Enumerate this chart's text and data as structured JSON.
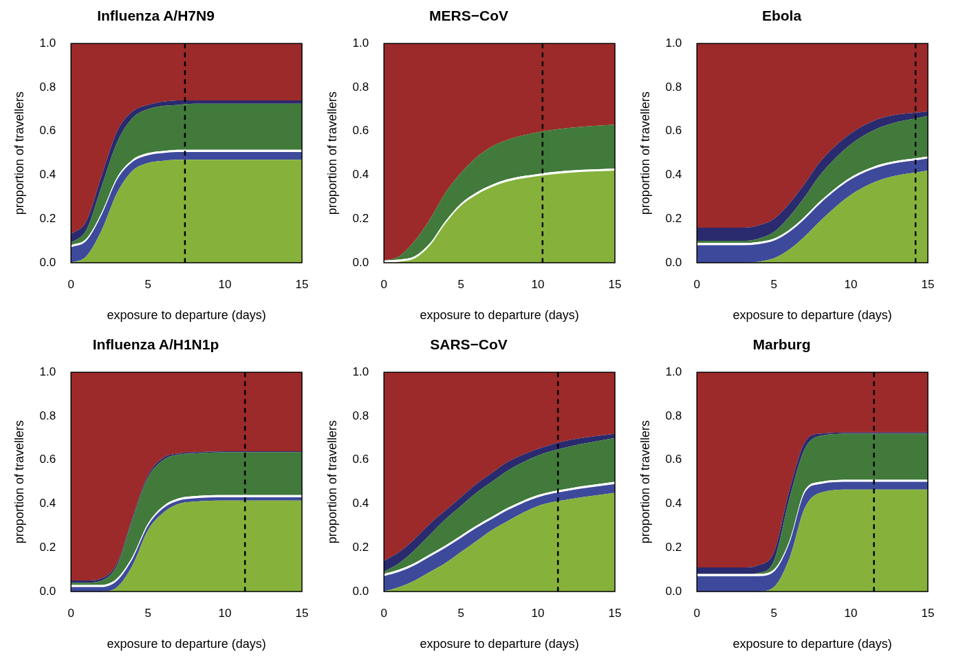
{
  "chart_data": [
    {
      "type": "area",
      "title": "Influenza A/H7N9",
      "xlabel": "exposure to departure (days)",
      "ylabel": "proportion of travellers",
      "stacked": true,
      "grid": false,
      "legend": false,
      "x": [
        0,
        1,
        2,
        3,
        4,
        5,
        6,
        7,
        8,
        10,
        12,
        15
      ],
      "xlim": [
        0,
        15
      ],
      "xticks": [
        0,
        5,
        10,
        15
      ],
      "ylim": [
        0,
        1
      ],
      "yticks": [
        {
          "value": 0,
          "label": "0.0"
        },
        {
          "value": 0.2,
          "label": "0.2"
        },
        {
          "value": 0.4,
          "label": "0.4"
        },
        {
          "value": 0.6,
          "label": "0.6"
        },
        {
          "value": 0.8,
          "label": "0.8"
        },
        {
          "value": 1,
          "label": "1.0"
        }
      ],
      "ref_lines": [
        {
          "axis": "x",
          "value": 7.4,
          "color": "#000000",
          "line_style": "dashed"
        }
      ],
      "series": [
        {
          "color": "#86b23b",
          "values": [
            0,
            0.03,
            0.15,
            0.32,
            0.42,
            0.455,
            0.465,
            0.47,
            0.47,
            0.47,
            0.47,
            0.47
          ]
        },
        {
          "color": "#3d4a9c",
          "values": [
            0.07,
            0.07,
            0.07,
            0.06,
            0.04,
            0.035,
            0.035,
            0.035,
            0.035,
            0.035,
            0.035,
            0.035
          ]
        },
        {
          "color": "#ffffff",
          "values": [
            0.01,
            0.01,
            0.01,
            0.01,
            0.01,
            0.01,
            0.01,
            0.01,
            0.01,
            0.01,
            0.01,
            0.01
          ]
        },
        {
          "color": "#417a3b",
          "values": [
            0.01,
            0.04,
            0.12,
            0.16,
            0.19,
            0.2,
            0.205,
            0.205,
            0.21,
            0.21,
            0.21,
            0.21
          ]
        },
        {
          "color": "#2a2a6e",
          "values": [
            0.04,
            0.04,
            0.05,
            0.05,
            0.03,
            0.02,
            0.02,
            0.02,
            0.015,
            0.015,
            0.015,
            0.015
          ]
        },
        {
          "color": "#9c2a2a",
          "values": [
            0.87,
            0.81,
            0.6,
            0.4,
            0.31,
            0.28,
            0.265,
            0.26,
            0.26,
            0.26,
            0.26,
            0.26
          ]
        }
      ]
    },
    {
      "type": "area",
      "title": "MERS−CoV",
      "xlabel": "exposure to departure (days)",
      "ylabel": "proportion of travellers",
      "stacked": true,
      "grid": false,
      "legend": false,
      "x": [
        0,
        1,
        2,
        3,
        4,
        5,
        6,
        7,
        8,
        10,
        12,
        15
      ],
      "xlim": [
        0,
        15
      ],
      "xticks": [
        0,
        5,
        10,
        15
      ],
      "ylim": [
        0,
        1
      ],
      "yticks": [
        {
          "value": 0,
          "label": "0.0"
        },
        {
          "value": 0.2,
          "label": "0.2"
        },
        {
          "value": 0.4,
          "label": "0.4"
        },
        {
          "value": 0.6,
          "label": "0.6"
        },
        {
          "value": 0.8,
          "label": "0.8"
        },
        {
          "value": 1,
          "label": "1.0"
        }
      ],
      "ref_lines": [
        {
          "axis": "x",
          "value": 10.3,
          "color": "#000000",
          "line_style": "dashed"
        }
      ],
      "series": [
        {
          "color": "#86b23b",
          "values": [
            0,
            0.005,
            0.02,
            0.08,
            0.18,
            0.26,
            0.31,
            0.345,
            0.37,
            0.395,
            0.41,
            0.42
          ]
        },
        {
          "color": "#ffffff",
          "values": [
            0.01,
            0.01,
            0.01,
            0.01,
            0.01,
            0.01,
            0.01,
            0.01,
            0.01,
            0.01,
            0.01,
            0.01
          ]
        },
        {
          "color": "#417a3b",
          "values": [
            0,
            0.015,
            0.07,
            0.11,
            0.13,
            0.14,
            0.16,
            0.175,
            0.18,
            0.19,
            0.195,
            0.2
          ]
        },
        {
          "color": "#9c2a2a",
          "values": [
            0.99,
            0.97,
            0.9,
            0.8,
            0.68,
            0.59,
            0.52,
            0.47,
            0.44,
            0.405,
            0.385,
            0.37
          ]
        }
      ]
    },
    {
      "type": "area",
      "title": "Ebola",
      "xlabel": "exposure to departure (days)",
      "ylabel": "proportion of travellers",
      "stacked": true,
      "grid": false,
      "legend": false,
      "x": [
        0,
        1,
        2,
        3,
        4,
        5,
        6,
        7,
        8,
        10,
        12,
        15
      ],
      "xlim": [
        0,
        15
      ],
      "xticks": [
        0,
        5,
        10,
        15
      ],
      "ylim": [
        0,
        1
      ],
      "yticks": [
        {
          "value": 0,
          "label": "0.0"
        },
        {
          "value": 0.2,
          "label": "0.2"
        },
        {
          "value": 0.4,
          "label": "0.4"
        },
        {
          "value": 0.6,
          "label": "0.6"
        },
        {
          "value": 0.8,
          "label": "0.8"
        },
        {
          "value": 1,
          "label": "1.0"
        }
      ],
      "ref_lines": [
        {
          "axis": "x",
          "value": 14.2,
          "color": "#000000",
          "line_style": "dashed"
        }
      ],
      "series": [
        {
          "color": "#86b23b",
          "values": [
            0,
            0,
            0,
            0,
            0.005,
            0.02,
            0.06,
            0.12,
            0.19,
            0.31,
            0.38,
            0.42
          ]
        },
        {
          "color": "#3d4a9c",
          "values": [
            0.08,
            0.08,
            0.08,
            0.08,
            0.08,
            0.08,
            0.08,
            0.08,
            0.08,
            0.07,
            0.06,
            0.055
          ]
        },
        {
          "color": "#ffffff",
          "values": [
            0.01,
            0.01,
            0.01,
            0.01,
            0.01,
            0.01,
            0.01,
            0.01,
            0.01,
            0.01,
            0.01,
            0.01
          ]
        },
        {
          "color": "#417a3b",
          "values": [
            0.01,
            0.01,
            0.01,
            0.01,
            0.015,
            0.03,
            0.06,
            0.09,
            0.12,
            0.15,
            0.17,
            0.185
          ]
        },
        {
          "color": "#2a2a6e",
          "values": [
            0.06,
            0.06,
            0.06,
            0.06,
            0.06,
            0.06,
            0.06,
            0.06,
            0.06,
            0.05,
            0.04,
            0.02
          ]
        },
        {
          "color": "#9c2a2a",
          "values": [
            0.84,
            0.84,
            0.84,
            0.84,
            0.83,
            0.8,
            0.73,
            0.64,
            0.54,
            0.41,
            0.34,
            0.31
          ]
        }
      ]
    },
    {
      "type": "area",
      "title": "Influenza A/H1N1p",
      "xlabel": "exposure to departure (days)",
      "ylabel": "proportion of travellers",
      "stacked": true,
      "grid": false,
      "legend": false,
      "x": [
        0,
        1,
        2,
        3,
        4,
        5,
        6,
        7,
        8,
        10,
        12,
        15
      ],
      "xlim": [
        0,
        15
      ],
      "xticks": [
        0,
        5,
        10,
        15
      ],
      "ylim": [
        0,
        1
      ],
      "yticks": [
        {
          "value": 0,
          "label": "0.0"
        },
        {
          "value": 0.2,
          "label": "0.2"
        },
        {
          "value": 0.4,
          "label": "0.4"
        },
        {
          "value": 0.6,
          "label": "0.6"
        },
        {
          "value": 0.8,
          "label": "0.8"
        },
        {
          "value": 1,
          "label": "1.0"
        }
      ],
      "ref_lines": [
        {
          "axis": "x",
          "value": 11.3,
          "color": "#000000",
          "line_style": "dashed"
        }
      ],
      "series": [
        {
          "color": "#86b23b",
          "values": [
            0,
            0,
            0,
            0.02,
            0.12,
            0.28,
            0.36,
            0.4,
            0.41,
            0.415,
            0.415,
            0.415
          ]
        },
        {
          "color": "#3d4a9c",
          "values": [
            0.02,
            0.02,
            0.02,
            0.03,
            0.03,
            0.02,
            0.02,
            0.015,
            0.015,
            0.015,
            0.015,
            0.015
          ]
        },
        {
          "color": "#ffffff",
          "values": [
            0.01,
            0.01,
            0.01,
            0.01,
            0.01,
            0.01,
            0.01,
            0.01,
            0.01,
            0.01,
            0.01,
            0.01
          ]
        },
        {
          "color": "#417a3b",
          "values": [
            0.01,
            0.01,
            0.02,
            0.06,
            0.17,
            0.21,
            0.21,
            0.2,
            0.195,
            0.195,
            0.195,
            0.195
          ]
        },
        {
          "color": "#2a2a6e",
          "values": [
            0.01,
            0.01,
            0.01,
            0.01,
            0.01,
            0.01,
            0.01,
            0.005,
            0.005,
            0.005,
            0.005,
            0.005
          ]
        },
        {
          "color": "#9c2a2a",
          "values": [
            0.95,
            0.95,
            0.94,
            0.87,
            0.66,
            0.47,
            0.39,
            0.37,
            0.365,
            0.36,
            0.36,
            0.36
          ]
        }
      ]
    },
    {
      "type": "area",
      "title": "SARS−CoV",
      "xlabel": "exposure to departure (days)",
      "ylabel": "proportion of travellers",
      "stacked": true,
      "grid": false,
      "legend": false,
      "x": [
        0,
        1,
        2,
        3,
        4,
        5,
        6,
        7,
        8,
        10,
        12,
        15
      ],
      "xlim": [
        0,
        15
      ],
      "xticks": [
        0,
        5,
        10,
        15
      ],
      "ylim": [
        0,
        1
      ],
      "yticks": [
        {
          "value": 0,
          "label": "0.0"
        },
        {
          "value": 0.2,
          "label": "0.2"
        },
        {
          "value": 0.4,
          "label": "0.4"
        },
        {
          "value": 0.6,
          "label": "0.6"
        },
        {
          "value": 0.8,
          "label": "0.8"
        },
        {
          "value": 1,
          "label": "1.0"
        }
      ],
      "ref_lines": [
        {
          "axis": "x",
          "value": 11.3,
          "color": "#000000",
          "line_style": "dashed"
        }
      ],
      "series": [
        {
          "color": "#86b23b",
          "values": [
            0,
            0.02,
            0.05,
            0.09,
            0.13,
            0.18,
            0.23,
            0.28,
            0.32,
            0.39,
            0.42,
            0.45
          ]
        },
        {
          "color": "#3d4a9c",
          "values": [
            0.07,
            0.07,
            0.07,
            0.07,
            0.07,
            0.065,
            0.06,
            0.05,
            0.05,
            0.04,
            0.04,
            0.04
          ]
        },
        {
          "color": "#ffffff",
          "values": [
            0.01,
            0.01,
            0.01,
            0.01,
            0.01,
            0.01,
            0.01,
            0.01,
            0.01,
            0.01,
            0.01,
            0.01
          ]
        },
        {
          "color": "#417a3b",
          "values": [
            0.01,
            0.03,
            0.06,
            0.09,
            0.12,
            0.135,
            0.15,
            0.16,
            0.17,
            0.18,
            0.19,
            0.2
          ]
        },
        {
          "color": "#2a2a6e",
          "values": [
            0.05,
            0.05,
            0.05,
            0.05,
            0.04,
            0.04,
            0.04,
            0.04,
            0.04,
            0.03,
            0.03,
            0.02
          ]
        },
        {
          "color": "#9c2a2a",
          "values": [
            0.86,
            0.82,
            0.76,
            0.69,
            0.63,
            0.57,
            0.51,
            0.46,
            0.41,
            0.35,
            0.31,
            0.28
          ]
        }
      ]
    },
    {
      "type": "area",
      "title": "Marburg",
      "xlabel": "exposure to departure (days)",
      "ylabel": "proportion of travellers",
      "stacked": true,
      "grid": false,
      "legend": false,
      "x": [
        0,
        1,
        2,
        3,
        4,
        5,
        6,
        7,
        8,
        10,
        12,
        15
      ],
      "xlim": [
        0,
        15
      ],
      "xticks": [
        0,
        5,
        10,
        15
      ],
      "ylim": [
        0,
        1
      ],
      "yticks": [
        {
          "value": 0,
          "label": "0.0"
        },
        {
          "value": 0.2,
          "label": "0.2"
        },
        {
          "value": 0.4,
          "label": "0.4"
        },
        {
          "value": 0.6,
          "label": "0.6"
        },
        {
          "value": 0.8,
          "label": "0.8"
        },
        {
          "value": 1,
          "label": "1.0"
        }
      ],
      "ref_lines": [
        {
          "axis": "x",
          "value": 11.5,
          "color": "#000000",
          "line_style": "dashed"
        }
      ],
      "series": [
        {
          "color": "#86b23b",
          "values": [
            0,
            0,
            0,
            0,
            0,
            0.02,
            0.15,
            0.38,
            0.45,
            0.465,
            0.465,
            0.465
          ]
        },
        {
          "color": "#3d4a9c",
          "values": [
            0.07,
            0.07,
            0.07,
            0.07,
            0.07,
            0.07,
            0.07,
            0.07,
            0.04,
            0.035,
            0.035,
            0.035
          ]
        },
        {
          "color": "#ffffff",
          "values": [
            0.01,
            0.01,
            0.01,
            0.01,
            0.01,
            0.01,
            0.01,
            0.01,
            0.01,
            0.01,
            0.01,
            0.01
          ]
        },
        {
          "color": "#417a3b",
          "values": [
            0,
            0,
            0,
            0,
            0.005,
            0.04,
            0.19,
            0.19,
            0.21,
            0.21,
            0.21,
            0.21
          ]
        },
        {
          "color": "#2a2a6e",
          "values": [
            0.03,
            0.03,
            0.03,
            0.03,
            0.035,
            0.04,
            0.04,
            0.03,
            0.01,
            0.005,
            0.005,
            0.005
          ]
        },
        {
          "color": "#9c2a2a",
          "values": [
            0.89,
            0.89,
            0.89,
            0.89,
            0.88,
            0.82,
            0.54,
            0.32,
            0.28,
            0.275,
            0.275,
            0.275
          ]
        }
      ]
    }
  ]
}
